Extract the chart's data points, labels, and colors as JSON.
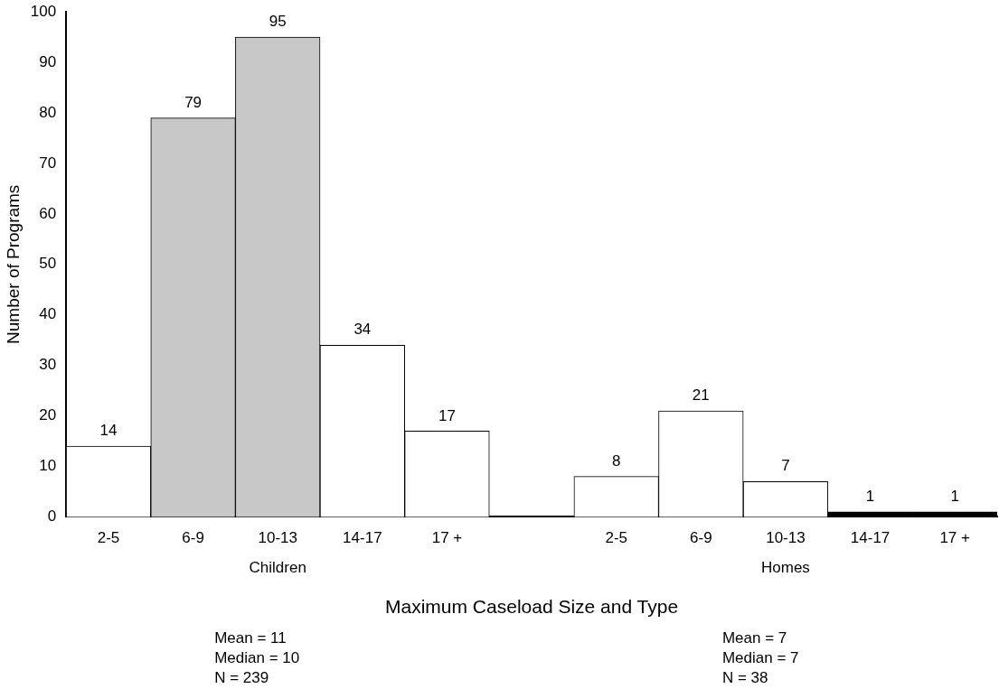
{
  "chart_data": {
    "type": "bar",
    "categories": [
      "2-5",
      "6-9",
      "10-13",
      "14-17",
      "17 +",
      null,
      "2-5",
      "6-9",
      "10-13",
      "14-17",
      "17 +"
    ],
    "values": [
      14,
      79,
      95,
      34,
      17,
      null,
      8,
      21,
      7,
      1,
      1
    ],
    "colors": [
      "#ffffff",
      "#c8c8c8",
      "#c8c8c8",
      "#ffffff",
      "#ffffff",
      "#ffffff",
      "#ffffff",
      "#ffffff",
      "#ffffff",
      "#000000",
      "#000000"
    ],
    "xlabel": "Maximum Caseload Size and Type",
    "ylabel": "Number of Programs",
    "ylim": [
      0,
      100
    ],
    "yticks": [
      0,
      10,
      20,
      30,
      40,
      50,
      60,
      70,
      80,
      90,
      100
    ],
    "data_labels": true,
    "grid": false,
    "legend": false,
    "annotations": [
      "Children",
      "Homes",
      "Mean = 11",
      "Median = 10",
      "N = 239",
      "Mean = 7",
      "Median = 7",
      "N = 38"
    ]
  }
}
